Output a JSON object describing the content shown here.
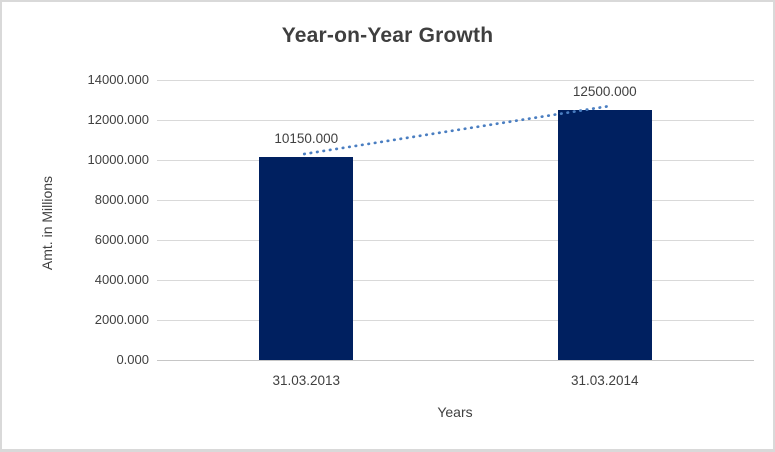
{
  "chart_data": {
    "type": "bar",
    "title": "Year-on-Year Growth",
    "xlabel": "Years",
    "ylabel": "Amt. in Millions",
    "categories": [
      "31.03.2013",
      "31.03.2014"
    ],
    "values": [
      10150,
      12500
    ],
    "data_labels": [
      "10150.000",
      "12500.000"
    ],
    "y_ticks": [
      "14000.000",
      "12000.000",
      "10000.000",
      "8000.000",
      "6000.000",
      "4000.000",
      "2000.000",
      "0.000"
    ],
    "ylim": [
      0,
      14000
    ],
    "grid": true,
    "legend": "none",
    "colors": {
      "bar": "#002060",
      "trendline": "#4a7ec1",
      "gridline": "#d9d9d9",
      "axis_line": "#c6c6c6",
      "text": "#404040",
      "title_text": "#3f3f3f",
      "frame_border": "#d9d9d9"
    },
    "trendline": {
      "style": "dotted"
    }
  }
}
